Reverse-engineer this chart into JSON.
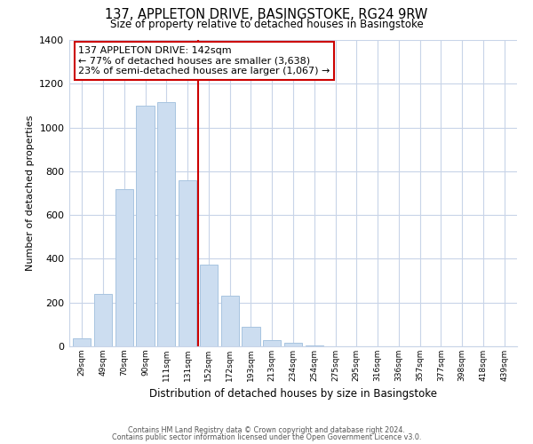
{
  "title": "137, APPLETON DRIVE, BASINGSTOKE, RG24 9RW",
  "subtitle": "Size of property relative to detached houses in Basingstoke",
  "xlabel": "Distribution of detached houses by size in Basingstoke",
  "ylabel": "Number of detached properties",
  "bar_labels": [
    "29sqm",
    "49sqm",
    "70sqm",
    "90sqm",
    "111sqm",
    "131sqm",
    "152sqm",
    "172sqm",
    "193sqm",
    "213sqm",
    "234sqm",
    "254sqm",
    "275sqm",
    "295sqm",
    "316sqm",
    "336sqm",
    "357sqm",
    "377sqm",
    "398sqm",
    "418sqm",
    "439sqm"
  ],
  "bar_values": [
    35,
    240,
    720,
    1100,
    1115,
    760,
    375,
    230,
    90,
    30,
    18,
    5,
    0,
    0,
    0,
    0,
    0,
    0,
    0,
    0,
    0
  ],
  "bar_color": "#ccddf0",
  "bar_edge_color": "#a8c4e0",
  "property_line_x": 5.5,
  "property_line_color": "#cc0000",
  "annotation_text": "137 APPLETON DRIVE: 142sqm\n← 77% of detached houses are smaller (3,638)\n23% of semi-detached houses are larger (1,067) →",
  "annotation_box_color": "#ffffff",
  "annotation_box_edge": "#cc0000",
  "ylim": [
    0,
    1400
  ],
  "yticks": [
    0,
    200,
    400,
    600,
    800,
    1000,
    1200,
    1400
  ],
  "footer1": "Contains HM Land Registry data © Crown copyright and database right 2024.",
  "footer2": "Contains public sector information licensed under the Open Government Licence v3.0.",
  "background_color": "#ffffff",
  "plot_bg_color": "#ffffff",
  "grid_color": "#c8d4e8"
}
